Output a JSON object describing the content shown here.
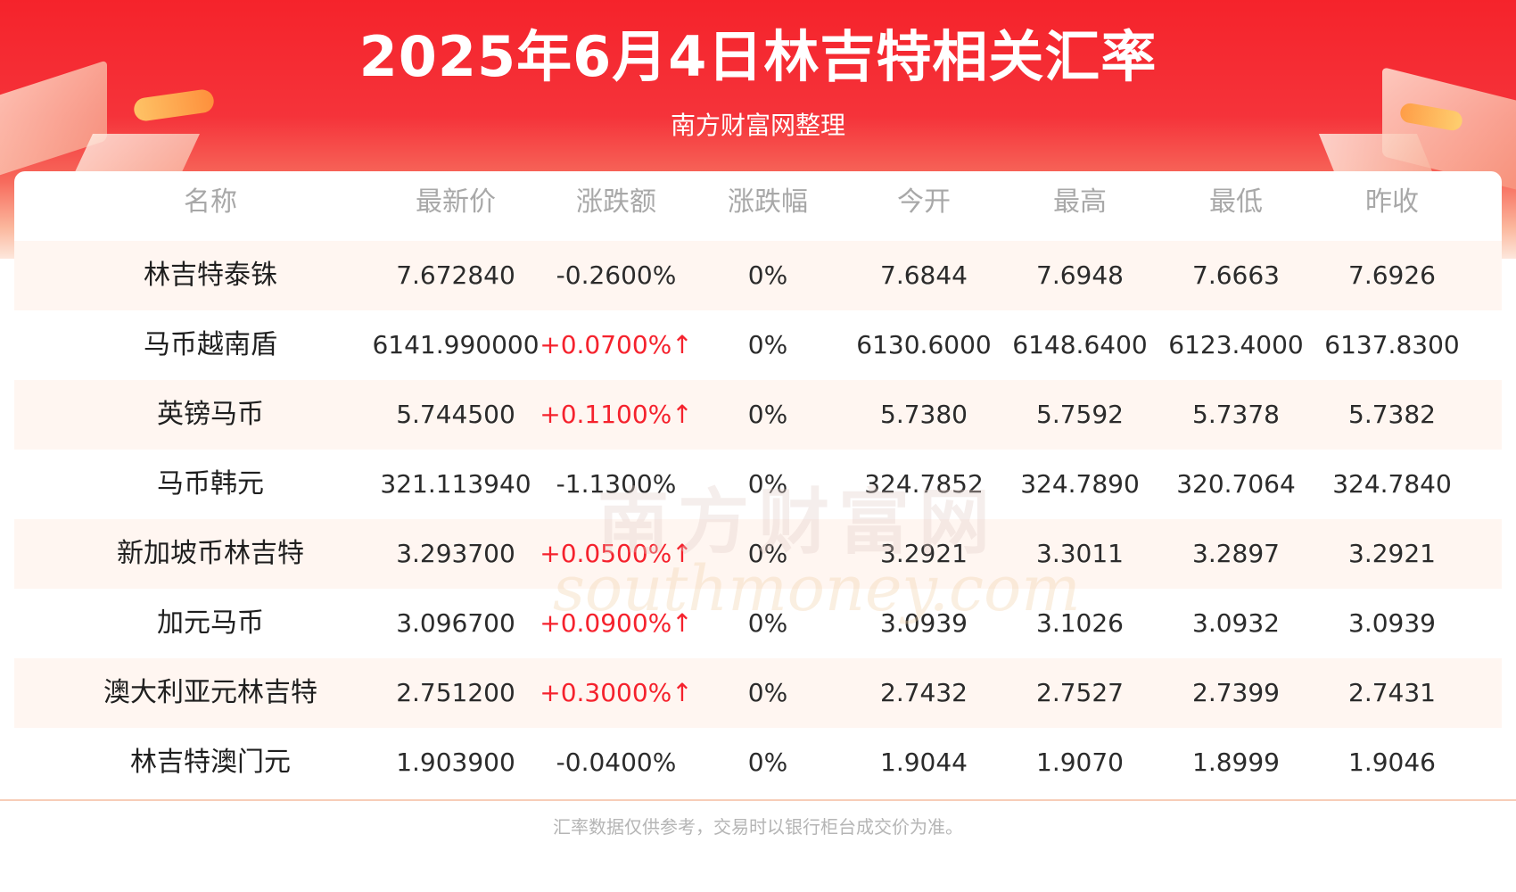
{
  "header": {
    "title": "2025年6月4日林吉特相关汇率",
    "subtitle": "南方财富网整理"
  },
  "table": {
    "columns": [
      "名称",
      "最新价",
      "涨跌额",
      "涨跌幅",
      "今开",
      "最高",
      "最低",
      "昨收"
    ],
    "rows": [
      {
        "name": "林吉特泰铢",
        "latest": "7.672840",
        "change": "-0.2600%",
        "direction": "down",
        "pct": "0%",
        "open": "7.6844",
        "high": "7.6948",
        "low": "7.6663",
        "prev_close": "7.6926"
      },
      {
        "name": "马币越南盾",
        "latest": "6141.990000",
        "change": "+0.0700%↑",
        "direction": "up",
        "pct": "0%",
        "open": "6130.6000",
        "high": "6148.6400",
        "low": "6123.4000",
        "prev_close": "6137.8300"
      },
      {
        "name": "英镑马币",
        "latest": "5.744500",
        "change": "+0.1100%↑",
        "direction": "up",
        "pct": "0%",
        "open": "5.7380",
        "high": "5.7592",
        "low": "5.7378",
        "prev_close": "5.7382"
      },
      {
        "name": "马币韩元",
        "latest": "321.113940",
        "change": "-1.1300%",
        "direction": "down",
        "pct": "0%",
        "open": "324.7852",
        "high": "324.7890",
        "low": "320.7064",
        "prev_close": "324.7840"
      },
      {
        "name": "新加坡币林吉特",
        "latest": "3.293700",
        "change": "+0.0500%↑",
        "direction": "up",
        "pct": "0%",
        "open": "3.2921",
        "high": "3.3011",
        "low": "3.2897",
        "prev_close": "3.2921"
      },
      {
        "name": "加元马币",
        "latest": "3.096700",
        "change": "+0.0900%↑",
        "direction": "up",
        "pct": "0%",
        "open": "3.0939",
        "high": "3.1026",
        "low": "3.0932",
        "prev_close": "3.0939"
      },
      {
        "name": "澳大利亚元林吉特",
        "latest": "2.751200",
        "change": "+0.3000%↑",
        "direction": "up",
        "pct": "0%",
        "open": "2.7432",
        "high": "2.7527",
        "low": "2.7399",
        "prev_close": "2.7431"
      },
      {
        "name": "林吉特澳门元",
        "latest": "1.903900",
        "change": "-0.0400%",
        "direction": "down",
        "pct": "0%",
        "open": "1.9044",
        "high": "1.9070",
        "low": "1.8999",
        "prev_close": "1.9046"
      }
    ]
  },
  "watermark": {
    "chinese": "南方财富网",
    "english": "southmoney.com"
  },
  "footer": {
    "note": "汇率数据仅供参考，交易时以银行柜台成交价为准。"
  },
  "colors": {
    "header_red": "#f5232b",
    "up_red": "#f5222d",
    "row_alt": "#fff6f1"
  }
}
